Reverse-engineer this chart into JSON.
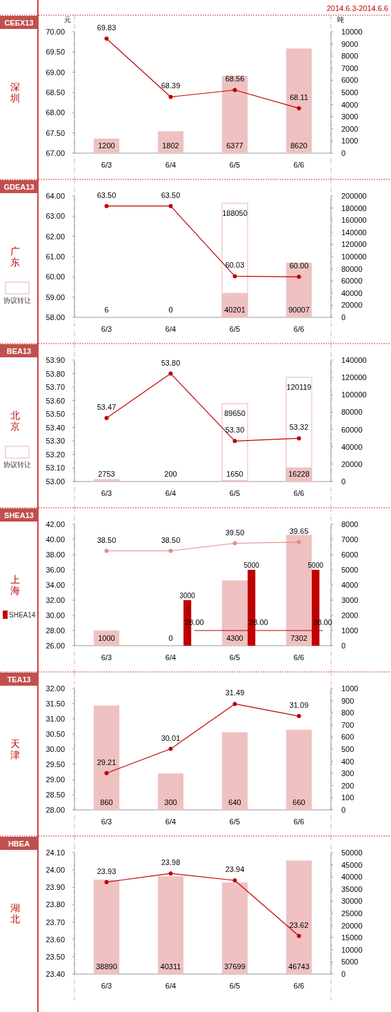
{
  "chart_data": [
    {
      "type": "bar",
      "title": "CEEX13",
      "subtitle": "深圳",
      "ylabel": "元",
      "y2label": "吨",
      "annotations": [
        "2014.6.3-2014.6.6"
      ],
      "marker": "circle",
      "categories": [
        "6/3",
        "6/4",
        "6/5",
        "6/6"
      ],
      "ylim": [
        67,
        70
      ],
      "yticks": [
        {
          "value": 67,
          "label": "67.00"
        },
        {
          "value": 67.5,
          "label": "67.50"
        },
        {
          "value": 68,
          "label": "68.00"
        },
        {
          "value": 68.5,
          "label": "68.50"
        },
        {
          "value": 69,
          "label": "69.00"
        },
        {
          "value": 69.5,
          "label": "69.50"
        },
        {
          "value": 70,
          "label": "70.00"
        }
      ],
      "y2lim": [
        0,
        10000
      ],
      "y2ticks": [
        0,
        1000,
        2000,
        3000,
        4000,
        5000,
        6000,
        7000,
        8000,
        9000,
        10000
      ],
      "series": [
        {
          "type": "bar",
          "axis": "y2",
          "color": "#efc1c1",
          "values": [
            1200,
            1802,
            6377,
            8620
          ],
          "value_labels": [
            "1200",
            "1802",
            "6377",
            "8620"
          ]
        },
        {
          "type": "line",
          "color": "#c00000",
          "values": [
            69.83,
            68.39,
            68.56,
            68.11
          ],
          "value_labels": [
            "69.83",
            "68.39",
            "68.56",
            "68.11"
          ]
        }
      ]
    },
    {
      "type": "bar",
      "title": "GDEA13",
      "subtitle": "广东",
      "marker": "circle",
      "legend": "left",
      "categories": [
        "6/3",
        "6/4",
        "6/5",
        "6/6"
      ],
      "ylim": [
        58,
        64
      ],
      "yticks": [
        {
          "value": 58,
          "label": "58.00"
        },
        {
          "value": 59,
          "label": "59.00"
        },
        {
          "value": 60,
          "label": "60.00"
        },
        {
          "value": 61,
          "label": "61.00"
        },
        {
          "value": 62,
          "label": "62.00"
        },
        {
          "value": 63,
          "label": "63.00"
        },
        {
          "value": 64,
          "label": "64.00"
        }
      ],
      "y2lim": [
        0,
        200000
      ],
      "y2ticks": [
        0,
        20000,
        40000,
        60000,
        80000,
        100000,
        120000,
        140000,
        160000,
        180000,
        200000
      ],
      "series": [
        {
          "type": "bar",
          "axis": "y2",
          "color": "#efc1c1",
          "values": [
            6,
            0,
            40201,
            90007
          ],
          "value_labels": [
            "6",
            "0",
            "40201",
            "90007"
          ]
        },
        {
          "type": "bar",
          "axis": "y2",
          "name": "协议转让",
          "line_style": "solid",
          "color": "#efc1c1",
          "values": [
            null,
            null,
            188050,
            null
          ],
          "value_labels": [
            null,
            null,
            "188050",
            null
          ]
        },
        {
          "type": "line",
          "color": "#c00000",
          "values": [
            63.5,
            63.5,
            60.03,
            60.0
          ],
          "value_labels": [
            "63.50",
            "63.50",
            "60.03",
            "60.00"
          ]
        }
      ]
    },
    {
      "type": "bar",
      "title": "BEA13",
      "subtitle": "北京",
      "marker": "circle",
      "legend": "left",
      "categories": [
        "6/3",
        "6/4",
        "6/5",
        "6/6"
      ],
      "ylim": [
        53,
        53.9
      ],
      "yticks": [
        {
          "value": 53,
          "label": "53.00"
        },
        {
          "value": 53.1,
          "label": "53.10"
        },
        {
          "value": 53.2,
          "label": "53.20"
        },
        {
          "value": 53.3,
          "label": "53.30"
        },
        {
          "value": 53.4,
          "label": "53.40"
        },
        {
          "value": 53.5,
          "label": "53.50"
        },
        {
          "value": 53.6,
          "label": "53.60"
        },
        {
          "value": 53.7,
          "label": "53.70"
        },
        {
          "value": 53.8,
          "label": "53.80"
        },
        {
          "value": 53.9,
          "label": "53.90"
        }
      ],
      "y2lim": [
        0,
        140000
      ],
      "y2ticks": [
        0,
        20000,
        40000,
        60000,
        80000,
        100000,
        120000,
        140000
      ],
      "series": [
        {
          "type": "bar",
          "axis": "y2",
          "color": "#efc1c1",
          "values": [
            2753,
            200,
            1650,
            16228
          ],
          "value_labels": [
            "2753",
            "200",
            "1650",
            "16228"
          ]
        },
        {
          "type": "bar",
          "axis": "y2",
          "name": "协议转让",
          "line_style": "solid",
          "color": "#efc1c1",
          "values": [
            null,
            null,
            89650,
            120119
          ],
          "value_labels": [
            null,
            null,
            "89650",
            "120119"
          ]
        },
        {
          "type": "line",
          "color": "#c00000",
          "values": [
            53.47,
            53.8,
            53.3,
            53.32
          ],
          "value_labels": [
            "53.47",
            "53.80",
            "53.30",
            "53.32"
          ]
        }
      ]
    },
    {
      "type": "bar",
      "title": "SHEA13",
      "subtitle": "上海",
      "marker": "circle",
      "legend": "left",
      "categories": [
        "6/3",
        "6/4",
        "6/5",
        "6/6"
      ],
      "ylim": [
        26,
        42
      ],
      "yticks": [
        {
          "value": 26,
          "label": "26.00"
        },
        {
          "value": 28,
          "label": "28.00"
        },
        {
          "value": 30,
          "label": "30.00"
        },
        {
          "value": 32,
          "label": "32.00"
        },
        {
          "value": 34,
          "label": "34.00"
        },
        {
          "value": 36,
          "label": "36.00"
        },
        {
          "value": 38,
          "label": "38.00"
        },
        {
          "value": 40,
          "label": "40.00"
        },
        {
          "value": 42,
          "label": "42.00"
        }
      ],
      "y2lim": [
        0,
        8000
      ],
      "y2ticks": [
        0,
        1000,
        2000,
        3000,
        4000,
        5000,
        6000,
        7000,
        8000
      ],
      "series": [
        {
          "type": "bar",
          "axis": "y2",
          "color": "#efc1c1",
          "values": [
            1000,
            0,
            4300,
            7302
          ],
          "value_labels": [
            "1000",
            "0",
            "4300",
            "7302"
          ]
        },
        {
          "type": "line",
          "color": "#e58a8a",
          "values": [
            38.5,
            38.5,
            39.5,
            39.65
          ],
          "value_labels": [
            "38.50",
            "38.50",
            "39.50",
            "39.65"
          ]
        },
        {
          "type": "bar",
          "axis": "y2",
          "name": "SHEA14",
          "color": "#c00000",
          "values": [
            null,
            3000,
            5000,
            5000
          ],
          "value_labels": [
            null,
            "3000",
            "5000",
            "5000"
          ]
        },
        {
          "type": "line",
          "color": "#c00000",
          "marker": "none",
          "values": [
            null,
            28.0,
            28.0,
            28.0
          ],
          "value_labels": [
            null,
            "28.00",
            "28.00",
            "28.00"
          ]
        }
      ]
    },
    {
      "type": "bar",
      "title": "TEA13",
      "subtitle": "天津",
      "marker": "circle",
      "categories": [
        "6/3",
        "6/4",
        "6/5",
        "6/6"
      ],
      "ylim": [
        28,
        32
      ],
      "yticks": [
        {
          "value": 28,
          "label": "28.00"
        },
        {
          "value": 28.5,
          "label": "28.50"
        },
        {
          "value": 29,
          "label": "29.00"
        },
        {
          "value": 29.5,
          "label": "29.50"
        },
        {
          "value": 30,
          "label": "30.00"
        },
        {
          "value": 30.5,
          "label": "30.50"
        },
        {
          "value": 31,
          "label": "31.00"
        },
        {
          "value": 31.5,
          "label": "31.50"
        },
        {
          "value": 32,
          "label": "32.00"
        }
      ],
      "y2lim": [
        0,
        1000
      ],
      "y2ticks": [
        0,
        100,
        200,
        300,
        400,
        500,
        600,
        700,
        800,
        900,
        1000
      ],
      "series": [
        {
          "type": "bar",
          "axis": "y2",
          "color": "#efc1c1",
          "values": [
            860,
            300,
            640,
            660
          ],
          "value_labels": [
            "860",
            "300",
            "640",
            "660"
          ]
        },
        {
          "type": "line",
          "color": "#c00000",
          "values": [
            29.21,
            30.01,
            31.49,
            31.09
          ],
          "value_labels": [
            "29.21",
            "30.01",
            "31.49",
            "31.09"
          ]
        }
      ]
    },
    {
      "type": "bar",
      "title": "HBEA",
      "subtitle": "湖北",
      "marker": "circle",
      "categories": [
        "6/3",
        "6/4",
        "6/5",
        "6/6"
      ],
      "ylim": [
        23.4,
        24.1
      ],
      "yticks": [
        {
          "value": 23.4,
          "label": "23.40"
        },
        {
          "value": 23.5,
          "label": "23.50"
        },
        {
          "value": 23.6,
          "label": "23.60"
        },
        {
          "value": 23.7,
          "label": "23.70"
        },
        {
          "value": 23.8,
          "label": "23.80"
        },
        {
          "value": 23.9,
          "label": "23.90"
        },
        {
          "value": 24.0,
          "label": "24.00"
        },
        {
          "value": 24.1,
          "label": "24.10"
        }
      ],
      "y2lim": [
        0,
        50000
      ],
      "y2ticks": [
        0,
        5000,
        10000,
        15000,
        20000,
        25000,
        30000,
        35000,
        40000,
        45000,
        50000
      ],
      "series": [
        {
          "type": "bar",
          "axis": "y2",
          "color": "#efc1c1",
          "values": [
            38890,
            40311,
            37699,
            46743
          ],
          "value_labels": [
            "38890",
            "40311",
            "37699",
            "46743"
          ]
        },
        {
          "type": "line",
          "color": "#c00000",
          "values": [
            23.93,
            23.98,
            23.94,
            23.62
          ],
          "value_labels": [
            "23.93",
            "23.98",
            "23.94",
            "23.62"
          ]
        }
      ]
    }
  ]
}
